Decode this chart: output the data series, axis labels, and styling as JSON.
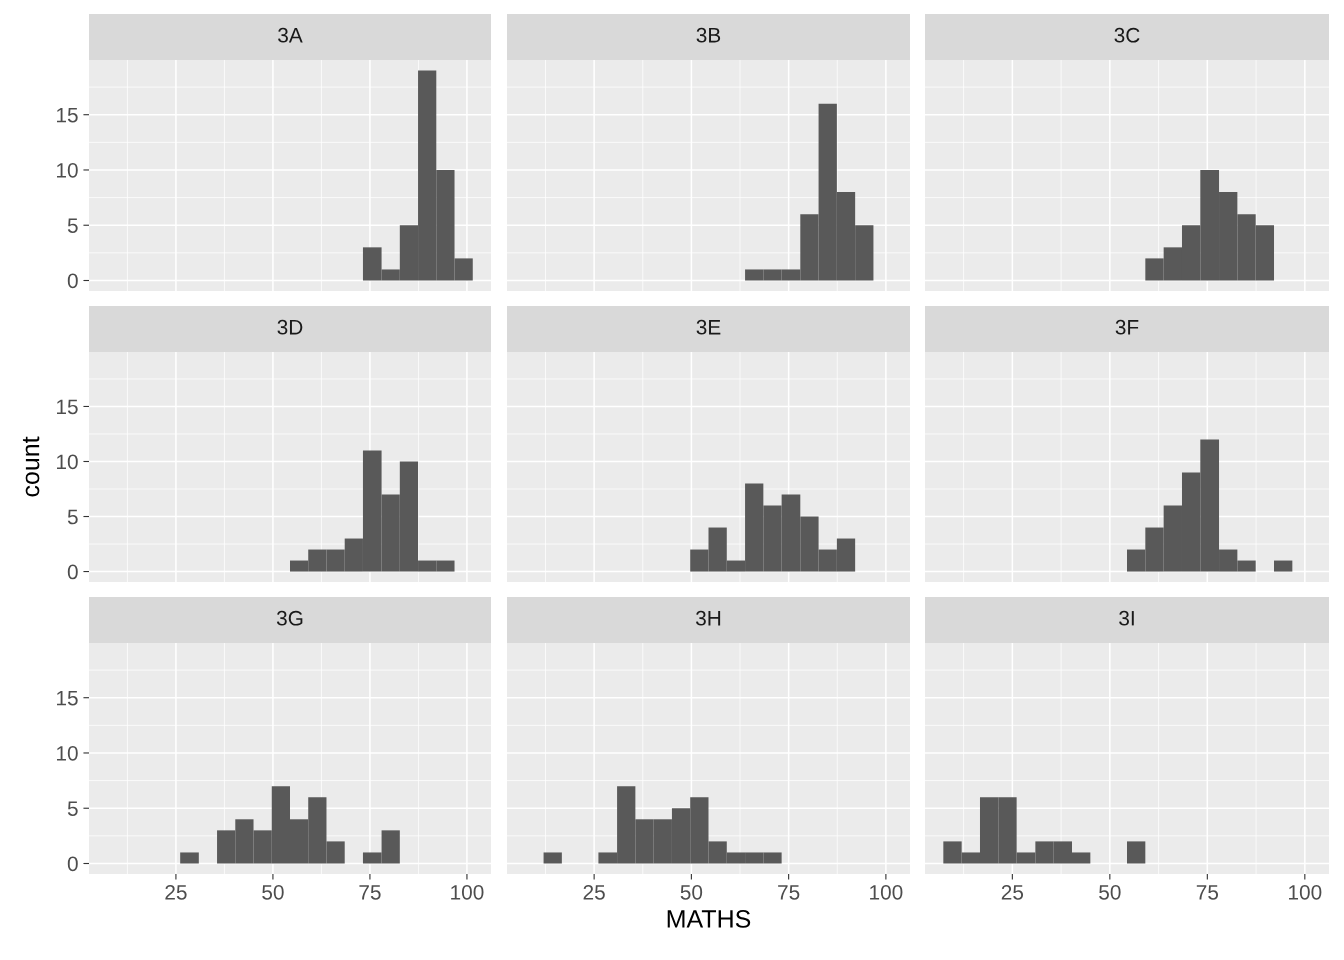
{
  "chart_data": [
    {
      "type": "histogram",
      "title": "3A",
      "color": "#595959",
      "bins": [
        7.3,
        12.0,
        16.7,
        21.4,
        26.1,
        30.9,
        35.6,
        40.3,
        45.0,
        49.7,
        54.4,
        59.1,
        63.8,
        68.5,
        73.2,
        78.0,
        82.7,
        87.4,
        92.1,
        96.8,
        101.5
      ],
      "values": [
        0,
        0,
        0,
        0,
        0,
        0,
        0,
        0,
        0,
        0,
        0,
        0,
        0,
        0,
        3,
        1,
        5,
        19,
        10,
        2
      ],
      "xlim": [
        2.6,
        106.2
      ],
      "ylim": [
        -0.95,
        19.95
      ],
      "xticks": [
        25,
        50,
        75,
        100
      ],
      "yticks": [
        0,
        5,
        10,
        15
      ],
      "grid": true,
      "tick_labels": "y"
    },
    {
      "type": "histogram",
      "title": "3B",
      "color": "#595959",
      "bins": [
        7.3,
        12.0,
        16.7,
        21.4,
        26.1,
        30.9,
        35.6,
        40.3,
        45.0,
        49.7,
        54.4,
        59.1,
        63.8,
        68.5,
        73.2,
        78.0,
        82.7,
        87.4,
        92.1,
        96.8,
        101.5
      ],
      "values": [
        0,
        0,
        0,
        0,
        0,
        0,
        0,
        0,
        0,
        0,
        0,
        0,
        1,
        1,
        1,
        6,
        16,
        8,
        5,
        0
      ],
      "xlim": [
        2.6,
        106.2
      ],
      "ylim": [
        -0.95,
        19.95
      ],
      "xticks": [
        25,
        50,
        75,
        100
      ],
      "yticks": [
        0,
        5,
        10,
        15
      ],
      "grid": true,
      "tick_labels": false
    },
    {
      "type": "histogram",
      "title": "3C",
      "color": "#595959",
      "bins": [
        7.3,
        12.0,
        16.7,
        21.4,
        26.1,
        30.9,
        35.6,
        40.3,
        45.0,
        49.7,
        54.4,
        59.1,
        63.8,
        68.5,
        73.2,
        78.0,
        82.7,
        87.4,
        92.1,
        96.8,
        101.5
      ],
      "values": [
        0,
        0,
        0,
        0,
        0,
        0,
        0,
        0,
        0,
        0,
        0,
        2,
        3,
        5,
        10,
        8,
        6,
        5,
        0,
        0
      ],
      "xlim": [
        2.6,
        106.2
      ],
      "ylim": [
        -0.95,
        19.95
      ],
      "xticks": [
        25,
        50,
        75,
        100
      ],
      "yticks": [
        0,
        5,
        10,
        15
      ],
      "grid": true,
      "tick_labels": false
    },
    {
      "type": "histogram",
      "title": "3D",
      "ylabel": "count",
      "color": "#595959",
      "bins": [
        7.3,
        12.0,
        16.7,
        21.4,
        26.1,
        30.9,
        35.6,
        40.3,
        45.0,
        49.7,
        54.4,
        59.1,
        63.8,
        68.5,
        73.2,
        78.0,
        82.7,
        87.4,
        92.1,
        96.8,
        101.5
      ],
      "values": [
        0,
        0,
        0,
        0,
        0,
        0,
        0,
        0,
        0,
        0,
        1,
        2,
        2,
        3,
        11,
        7,
        10,
        1,
        1,
        0
      ],
      "xlim": [
        2.6,
        106.2
      ],
      "ylim": [
        -0.95,
        19.95
      ],
      "xticks": [
        25,
        50,
        75,
        100
      ],
      "yticks": [
        0,
        5,
        10,
        15
      ],
      "grid": true,
      "tick_labels": "y"
    },
    {
      "type": "histogram",
      "title": "3E",
      "color": "#595959",
      "bins": [
        7.3,
        12.0,
        16.7,
        21.4,
        26.1,
        30.9,
        35.6,
        40.3,
        45.0,
        49.7,
        54.4,
        59.1,
        63.8,
        68.5,
        73.2,
        78.0,
        82.7,
        87.4,
        92.1,
        96.8,
        101.5
      ],
      "values": [
        0,
        0,
        0,
        0,
        0,
        0,
        0,
        0,
        0,
        2,
        4,
        1,
        8,
        6,
        7,
        5,
        2,
        3,
        0,
        0
      ],
      "xlim": [
        2.6,
        106.2
      ],
      "ylim": [
        -0.95,
        19.95
      ],
      "xticks": [
        25,
        50,
        75,
        100
      ],
      "yticks": [
        0,
        5,
        10,
        15
      ],
      "grid": true,
      "tick_labels": false
    },
    {
      "type": "histogram",
      "title": "3F",
      "color": "#595959",
      "bins": [
        7.3,
        12.0,
        16.7,
        21.4,
        26.1,
        30.9,
        35.6,
        40.3,
        45.0,
        49.7,
        54.4,
        59.1,
        63.8,
        68.5,
        73.2,
        78.0,
        82.7,
        87.4,
        92.1,
        96.8,
        101.5
      ],
      "values": [
        0,
        0,
        0,
        0,
        0,
        0,
        0,
        0,
        0,
        0,
        2,
        4,
        6,
        9,
        12,
        2,
        1,
        0,
        1,
        0
      ],
      "xlim": [
        2.6,
        106.2
      ],
      "ylim": [
        -0.95,
        19.95
      ],
      "xticks": [
        25,
        50,
        75,
        100
      ],
      "yticks": [
        0,
        5,
        10,
        15
      ],
      "grid": true,
      "tick_labels": false
    },
    {
      "type": "histogram",
      "title": "3G",
      "color": "#595959",
      "bins": [
        7.3,
        12.0,
        16.7,
        21.4,
        26.1,
        30.9,
        35.6,
        40.3,
        45.0,
        49.7,
        54.4,
        59.1,
        63.8,
        68.5,
        73.2,
        78.0,
        82.7,
        87.4,
        92.1,
        96.8,
        101.5
      ],
      "values": [
        0,
        0,
        0,
        0,
        1,
        0,
        3,
        4,
        3,
        7,
        4,
        6,
        2,
        0,
        1,
        3,
        0,
        0,
        0,
        0
      ],
      "xlim": [
        2.6,
        106.2
      ],
      "ylim": [
        -0.95,
        19.95
      ],
      "xticks": [
        25,
        50,
        75,
        100
      ],
      "yticks": [
        0,
        5,
        10,
        15
      ],
      "grid": true
    },
    {
      "type": "histogram",
      "title": "3H",
      "xlabel": "MATHS",
      "color": "#595959",
      "bins": [
        7.3,
        12.0,
        16.7,
        21.4,
        26.1,
        30.9,
        35.6,
        40.3,
        45.0,
        49.7,
        54.4,
        59.1,
        63.8,
        68.5,
        73.2,
        78.0,
        82.7,
        87.4,
        92.1,
        96.8,
        101.5
      ],
      "values": [
        0,
        1,
        0,
        0,
        1,
        7,
        4,
        4,
        5,
        6,
        2,
        1,
        1,
        1,
        0,
        0,
        0,
        0,
        0,
        0
      ],
      "xlim": [
        2.6,
        106.2
      ],
      "ylim": [
        -0.95,
        19.95
      ],
      "xticks": [
        25,
        50,
        75,
        100
      ],
      "yticks": [
        0,
        5,
        10,
        15
      ],
      "grid": true,
      "tick_labels": "x"
    },
    {
      "type": "histogram",
      "title": "3I",
      "color": "#595959",
      "bins": [
        7.3,
        12.0,
        16.7,
        21.4,
        26.1,
        30.9,
        35.6,
        40.3,
        45.0,
        49.7,
        54.4,
        59.1,
        63.8,
        68.5,
        73.2,
        78.0,
        82.7,
        87.4,
        92.1,
        96.8,
        101.5
      ],
      "values": [
        2,
        1,
        6,
        6,
        1,
        2,
        2,
        1,
        0,
        0,
        2,
        0,
        0,
        0,
        0,
        0,
        0,
        0,
        0,
        0
      ],
      "xlim": [
        2.6,
        106.2
      ],
      "ylim": [
        -0.95,
        19.95
      ],
      "xticks": [
        25,
        50,
        75,
        100
      ],
      "yticks": [
        0,
        5,
        10,
        15
      ],
      "grid": true,
      "tick_labels": "x"
    }
  ]
}
